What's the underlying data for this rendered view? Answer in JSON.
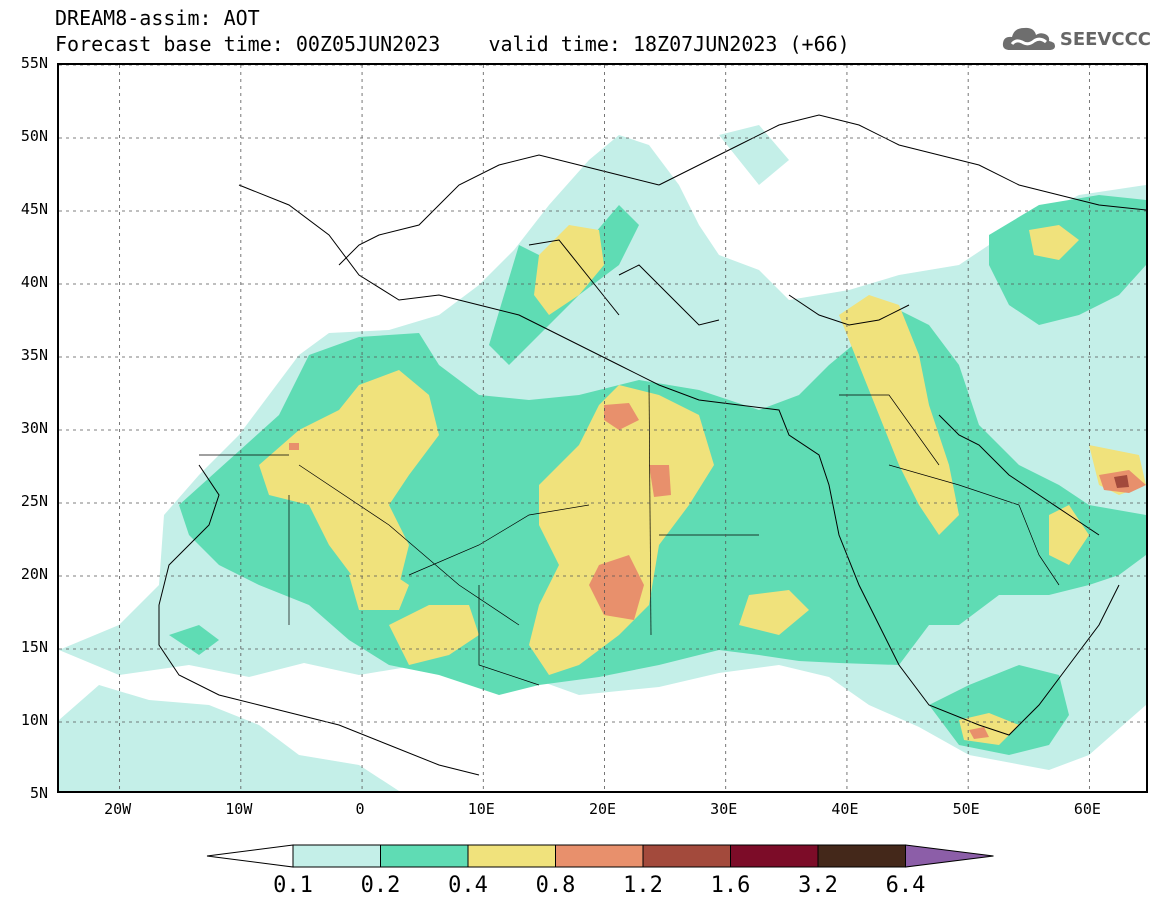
{
  "header": {
    "line1": "DREAM8-assim: AOT",
    "line2": "Forecast base time: 00Z05JUN2023    valid time: 18Z07JUN2023 (+66)",
    "logo_text": "SEEVCCC",
    "logo_icon": "cloud-icon"
  },
  "map": {
    "region": {
      "lon_min": -25,
      "lon_max": 65,
      "lat_min": 5,
      "lat_max": 55
    },
    "lat_labels": [
      "55N",
      "50N",
      "45N",
      "40N",
      "35N",
      "30N",
      "25N",
      "20N",
      "15N",
      "10N",
      "5N"
    ],
    "lon_labels": [
      "20W",
      "10W",
      "0",
      "10E",
      "20E",
      "30E",
      "40E",
      "50E",
      "60E"
    ],
    "lat_values": [
      55,
      50,
      45,
      40,
      35,
      30,
      25,
      20,
      15,
      10,
      5
    ],
    "lon_values": [
      -20,
      -10,
      0,
      10,
      20,
      30,
      40,
      50,
      60
    ],
    "gridlines": "dashed"
  },
  "colorbar": {
    "thresholds": [
      "0.1",
      "0.2",
      "0.4",
      "0.8",
      "1.2",
      "1.6",
      "3.2",
      "6.4"
    ],
    "colors": [
      "#c4efe8",
      "#5fdcb4",
      "#f0e27c",
      "#e8906c",
      "#a34a3c",
      "#7c0c28",
      "#44281a",
      "#8c5ea8"
    ],
    "extend": "both"
  }
}
